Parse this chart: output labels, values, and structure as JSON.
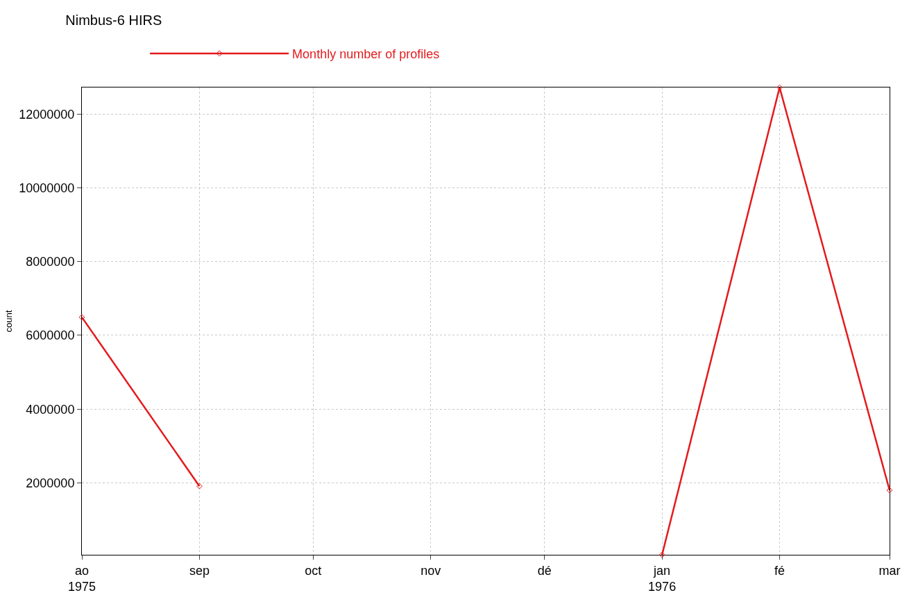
{
  "chart_data": {
    "type": "line",
    "title": "Nimbus-6 HIRS",
    "ylabel": "count",
    "x": [
      "1975-08",
      "1975-09",
      "1975-10",
      "1975-11",
      "1975-12",
      "1976-01",
      "1976-02",
      "1976-03"
    ],
    "series": [
      {
        "name": "Monthly number of profiles",
        "color": "#e41a1c",
        "values": [
          6490000,
          1910000,
          null,
          null,
          null,
          50000,
          12720000,
          1800000
        ]
      }
    ],
    "xlim": [
      "1975-08",
      "1976-03"
    ],
    "xticks": [
      {
        "value": "1975-08",
        "label": "ao\n1975"
      },
      {
        "value": "1975-09",
        "label": "sep"
      },
      {
        "value": "1975-10",
        "label": "oct"
      },
      {
        "value": "1975-11",
        "label": "nov"
      },
      {
        "value": "1975-12",
        "label": "dé"
      },
      {
        "value": "1976-01",
        "label": "jan\n1976"
      },
      {
        "value": "1976-02",
        "label": "fé"
      },
      {
        "value": "1976-03",
        "label": "mar"
      }
    ],
    "ylim": [
      50000,
      12720000
    ],
    "yticks": [
      2000000,
      4000000,
      6000000,
      8000000,
      10000000,
      12000000
    ],
    "grid": true,
    "legend": "top",
    "marker": "diamond",
    "line_style": "solid"
  }
}
